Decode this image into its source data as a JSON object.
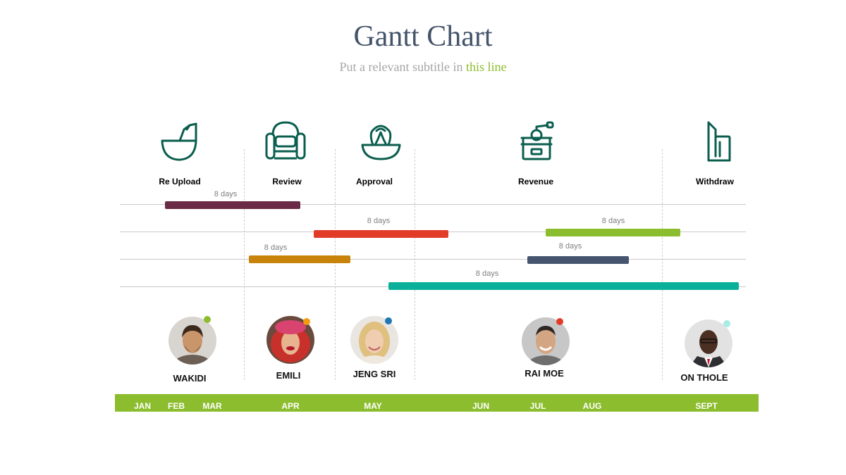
{
  "title": "Gantt Chart",
  "subtitle": {
    "prefix": "Put a relevant subtitle in ",
    "accent": "this line"
  },
  "stages": [
    {
      "label": "Re Upload",
      "icon": "bowl-icon"
    },
    {
      "label": "Review",
      "icon": "armchair-icon"
    },
    {
      "label": "Approval",
      "icon": "juicer-icon"
    },
    {
      "label": "Revenue",
      "icon": "coffee-grinder-icon"
    },
    {
      "label": "Withdraw",
      "icon": "iron-icon"
    }
  ],
  "tasks": [
    {
      "duration": "8 days",
      "color": "#6b2a45"
    },
    {
      "duration": "8 days",
      "color": "#e23c28"
    },
    {
      "duration": "8 days",
      "color": "#8cbd2e"
    },
    {
      "duration": "8 days",
      "color": "#c8830a"
    },
    {
      "duration": "8 days",
      "color": "#46546f"
    },
    {
      "duration": "8 days",
      "color": "#0bb09a"
    }
  ],
  "people": [
    {
      "name": "WAKIDI",
      "dot_color": "#8cbd2e"
    },
    {
      "name": "EMILI",
      "dot_color": "#f39c12"
    },
    {
      "name": "JENG SRI",
      "dot_color": "#1f77b4"
    },
    {
      "name": "RAI MOE",
      "dot_color": "#e23c28"
    },
    {
      "name": "ON THOLE",
      "dot_color": "#a8ece6"
    }
  ],
  "months": [
    "JAN",
    "FEB",
    "MAR",
    "APR",
    "MAY",
    "JUN",
    "JUL",
    "AUG",
    "SEPT"
  ],
  "colors": {
    "title": "#44546a",
    "accent": "#8cbd2e",
    "icon_stroke": "#0b5e4f"
  }
}
